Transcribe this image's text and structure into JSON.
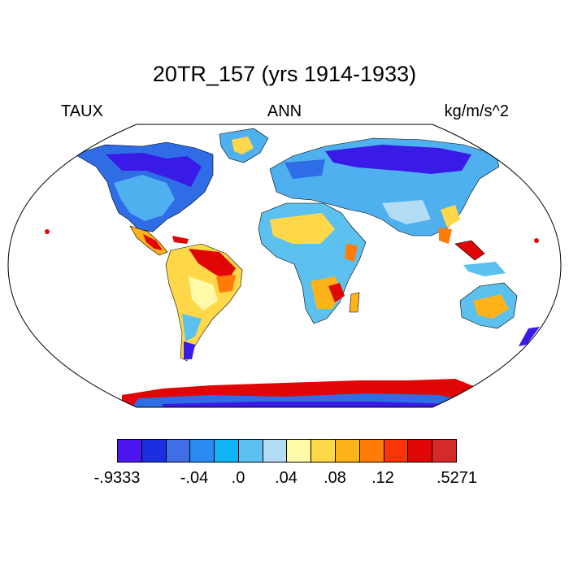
{
  "title": "20TR_157 (yrs 1914-1933)",
  "left_label": "TAUX",
  "center_label": "ANN",
  "right_label": "kg/m/s^2",
  "colorbar": {
    "colors": [
      "#4b16f2",
      "#1c2fe0",
      "#3f6ee6",
      "#2a8af2",
      "#0fb4f5",
      "#5cc1ef",
      "#b2ddf5",
      "#fffaa8",
      "#ffd84a",
      "#ffb31a",
      "#ff7c09",
      "#fb3409",
      "#e10606",
      "#d62a2a"
    ],
    "tick_labels": [
      "-.9333",
      "-.04",
      ".0",
      ".04",
      ".08",
      ".12",
      ".5271"
    ]
  },
  "map": {
    "projection": "Robinson",
    "variable": "TAUX",
    "ocean_color": "#ffffff"
  }
}
